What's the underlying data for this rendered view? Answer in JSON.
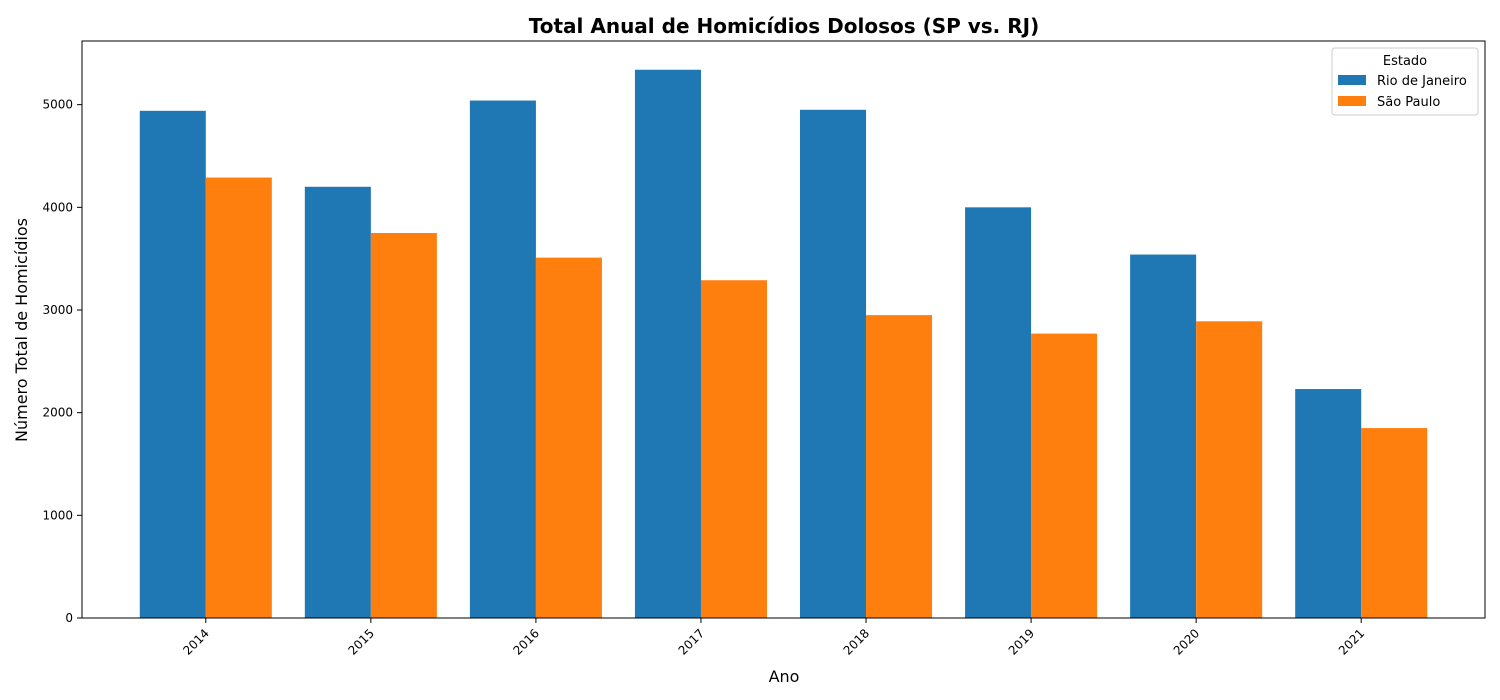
{
  "chart_data": {
    "type": "bar",
    "title": "Total Anual de Homicídios Dolosos (SP vs. RJ)",
    "xlabel": "Ano",
    "ylabel": "Número Total de Homicídios",
    "categories": [
      "2014",
      "2015",
      "2016",
      "2017",
      "2018",
      "2019",
      "2020",
      "2021"
    ],
    "series": [
      {
        "name": "Rio de Janeiro",
        "color": "#1f77b4",
        "values": [
          4940,
          4200,
          5040,
          5340,
          4950,
          4000,
          3540,
          2230
        ]
      },
      {
        "name": "São Paulo",
        "color": "#ff7f0e",
        "values": [
          4290,
          3750,
          3510,
          3290,
          2950,
          2770,
          2890,
          1850
        ]
      }
    ],
    "ylim": [
      0,
      5620
    ],
    "yticks": [
      0,
      1000,
      2000,
      3000,
      4000,
      5000
    ],
    "grid": false,
    "legend": {
      "title": "Estado",
      "placement": "top-right"
    },
    "xtick_rotation_deg": 45
  }
}
